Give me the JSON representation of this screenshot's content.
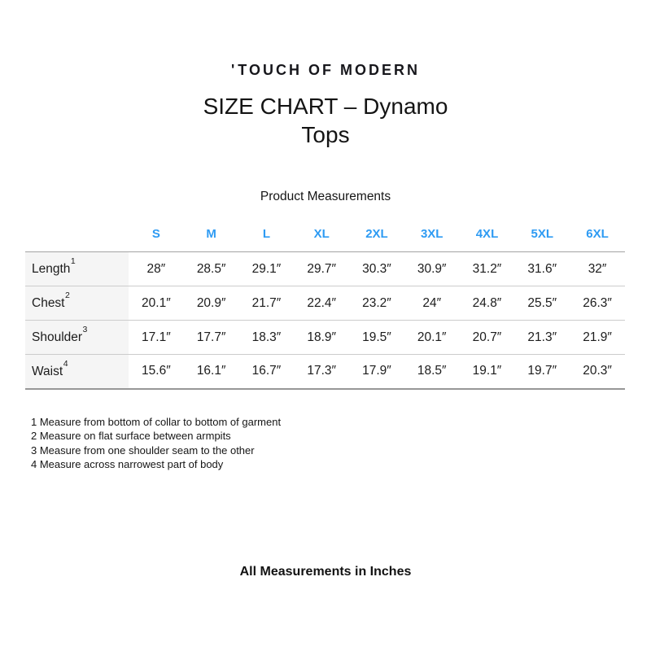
{
  "brand": {
    "mark": "'",
    "name": "TOUCH OF MODERN"
  },
  "title_lines": [
    "SIZE CHART – Dynamo",
    "Tops"
  ],
  "subtitle": "Product Measurements",
  "measurements_table": {
    "size_headers": [
      "S",
      "M",
      "L",
      "XL",
      "2XL",
      "3XL",
      "4XL",
      "5XL",
      "6XL"
    ],
    "rows": [
      {
        "label": "Length",
        "sup": "1",
        "values": [
          "28″",
          "28.5″",
          "29.1″",
          "29.7″",
          "30.3″",
          "30.9″",
          "31.2″",
          "31.6″",
          "32″"
        ]
      },
      {
        "label": "Chest",
        "sup": "2",
        "values": [
          "20.1″",
          "20.9″",
          "21.7″",
          "22.4″",
          "23.2″",
          "24″",
          "24.8″",
          "25.5″",
          "26.3″"
        ]
      },
      {
        "label": "Shoulder",
        "sup": "3",
        "values": [
          "17.1″",
          "17.7″",
          "18.3″",
          "18.9″",
          "19.5″",
          "20.1″",
          "20.7″",
          "21.3″",
          "21.9″"
        ]
      },
      {
        "label": "Waist",
        "sup": "4",
        "values": [
          "15.6″",
          "16.1″",
          "16.7″",
          "17.3″",
          "17.9″",
          "18.5″",
          "19.1″",
          "19.7″",
          "20.3″"
        ]
      }
    ]
  },
  "footnotes": [
    "1 Measure from bottom of collar to bottom of garment",
    "2 Measure on flat surface between armpits",
    "3 Measure from one shoulder seam to the other",
    "4 Measure across narrowest part of body"
  ],
  "footer_note": "All Measurements in Inches",
  "colors": {
    "accent_blue": "#2E9BF3",
    "label_column_bg": "#F5F5F5",
    "text": "#1B1B1B"
  }
}
